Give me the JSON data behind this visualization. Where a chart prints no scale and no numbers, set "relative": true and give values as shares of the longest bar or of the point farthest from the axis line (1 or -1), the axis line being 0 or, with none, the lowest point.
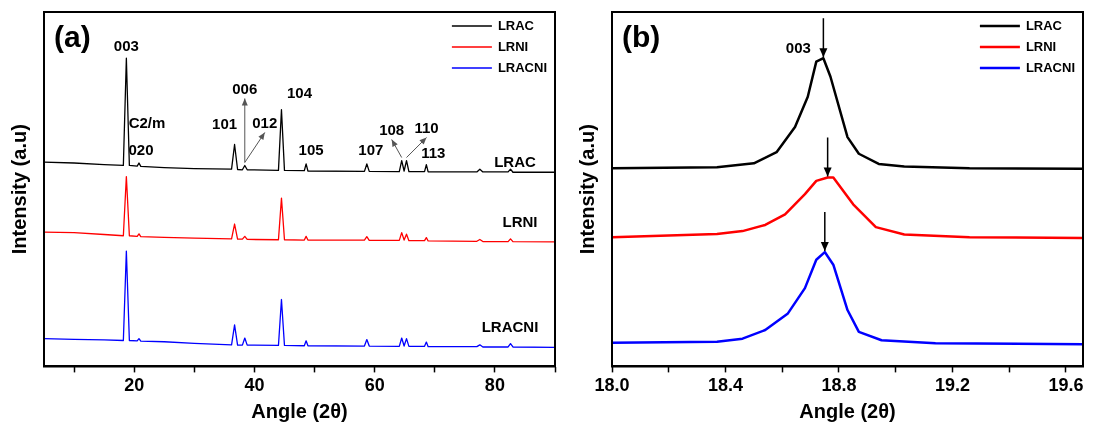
{
  "chart_data": [
    {
      "type": "line",
      "xlabel": "Angle (2θ)",
      "ylabel": "Intensity (a.u)",
      "relative": true,
      "marker": "none",
      "legend": "top right",
      "xlim": [
        5,
        90
      ],
      "xticks": [
        {
          "value": 10,
          "label": null
        },
        20,
        {
          "value": 30,
          "label": null
        },
        40,
        {
          "value": 50,
          "label": null
        },
        60,
        {
          "value": 70,
          "label": null
        },
        80,
        {
          "value": 90,
          "label": null
        }
      ],
      "annotations": [
        "(a)",
        {
          "text": "003",
          "x": 18.7,
          "y": 1.0
        },
        {
          "text": "020",
          "x": 20.8,
          "y": 0.66
        },
        {
          "text": "C2/m",
          "x": 20.8,
          "y": 0.66
        },
        {
          "text": "101",
          "x": 36.7,
          "y": 0.72
        },
        {
          "text": "006",
          "x": 38.4,
          "y": 0.652
        },
        {
          "text": "012",
          "x": 38.4,
          "y": 0.652
        },
        {
          "text": "104",
          "x": 44.5,
          "y": 0.833
        },
        {
          "text": "105",
          "x": 48.6,
          "y": 0.657
        },
        {
          "text": "107",
          "x": 58.7,
          "y": 0.657
        },
        {
          "text": "108",
          "x": 64.5,
          "y": 0.668
        },
        {
          "text": "110",
          "x": 65.3,
          "y": 0.668
        },
        {
          "text": "113",
          "x": 68.6,
          "y": 0.655
        },
        {
          "text": "LRAC",
          "x": 90,
          "y": 0.63
        },
        {
          "text": "LRNI",
          "x": 90,
          "y": 0.404
        },
        {
          "text": "LRACNI",
          "x": 90,
          "y": 0.062
        }
      ],
      "series": [
        {
          "name": "LRAC",
          "color": "#000000",
          "x": [
            5,
            10,
            15,
            18.2,
            18.7,
            19.2,
            20.5,
            20.8,
            21.1,
            25,
            30,
            36.2,
            36.7,
            37.2,
            38.0,
            38.4,
            38.8,
            44.0,
            44.5,
            45.0,
            48.3,
            48.6,
            48.9,
            58.3,
            58.7,
            59.1,
            64.1,
            64.5,
            64.9,
            65.3,
            65.7,
            68.3,
            68.6,
            68.9,
            77.0,
            77.5,
            78.0,
            82.2,
            82.6,
            83.0,
            90
          ],
          "values": [
            0.663,
            0.66,
            0.655,
            0.652,
            1.0,
            0.652,
            0.65,
            0.66,
            0.649,
            0.645,
            0.642,
            0.64,
            0.72,
            0.639,
            0.638,
            0.652,
            0.638,
            0.636,
            0.833,
            0.636,
            0.635,
            0.657,
            0.634,
            0.633,
            0.657,
            0.633,
            0.632,
            0.668,
            0.634,
            0.668,
            0.632,
            0.632,
            0.655,
            0.631,
            0.631,
            0.64,
            0.631,
            0.631,
            0.64,
            0.63,
            0.63
          ]
        },
        {
          "name": "LRNI",
          "color": "#ff0000",
          "x": [
            5,
            10,
            15,
            18.2,
            18.7,
            19.2,
            20.5,
            20.8,
            21.1,
            25,
            30,
            36.2,
            36.7,
            37.2,
            38.0,
            38.4,
            38.8,
            44.0,
            44.5,
            45.0,
            48.3,
            48.6,
            48.9,
            58.3,
            58.7,
            59.1,
            64.1,
            64.5,
            64.9,
            65.3,
            65.7,
            68.3,
            68.6,
            68.9,
            77.0,
            77.5,
            78.0,
            82.2,
            82.6,
            83.0,
            90
          ],
          "values": [
            0.436,
            0.434,
            0.428,
            0.424,
            0.616,
            0.424,
            0.422,
            0.43,
            0.421,
            0.419,
            0.416,
            0.414,
            0.462,
            0.413,
            0.413,
            0.422,
            0.412,
            0.411,
            0.546,
            0.411,
            0.41,
            0.422,
            0.41,
            0.41,
            0.421,
            0.409,
            0.409,
            0.434,
            0.41,
            0.429,
            0.408,
            0.408,
            0.418,
            0.407,
            0.406,
            0.412,
            0.405,
            0.405,
            0.414,
            0.405,
            0.404
          ]
        },
        {
          "name": "LRACNI",
          "color": "#0000ff",
          "x": [
            5,
            10,
            15,
            18.2,
            18.7,
            19.2,
            20.5,
            20.8,
            21.1,
            25,
            30,
            36.2,
            36.7,
            37.2,
            38.0,
            38.4,
            38.8,
            44.0,
            44.5,
            45.0,
            48.3,
            48.6,
            48.9,
            58.3,
            58.7,
            59.1,
            64.1,
            64.5,
            64.9,
            65.3,
            65.7,
            68.3,
            68.6,
            68.9,
            77.0,
            77.5,
            78.0,
            82.2,
            82.6,
            83.0,
            90
          ],
          "values": [
            0.09,
            0.088,
            0.086,
            0.084,
            0.374,
            0.084,
            0.083,
            0.09,
            0.082,
            0.08,
            0.075,
            0.07,
            0.135,
            0.069,
            0.069,
            0.092,
            0.069,
            0.068,
            0.217,
            0.068,
            0.067,
            0.083,
            0.067,
            0.066,
            0.087,
            0.066,
            0.065,
            0.092,
            0.066,
            0.09,
            0.065,
            0.065,
            0.079,
            0.064,
            0.064,
            0.07,
            0.063,
            0.063,
            0.074,
            0.063,
            0.062
          ]
        }
      ]
    },
    {
      "type": "line",
      "xlabel": "Angle (2θ)",
      "ylabel": "Intensity (a.u)",
      "relative": true,
      "marker": "none",
      "legend": "top right",
      "xlim": [
        18,
        19.66
      ],
      "xticks": [
        {
          "value": 18,
          "label": "18.0"
        },
        {
          "value": 18.2,
          "label": null
        },
        18.4,
        {
          "value": 18.6,
          "label": null
        },
        18.8,
        {
          "value": 19,
          "label": null
        },
        19.2,
        {
          "value": 19.4,
          "label": null
        },
        19.6
      ],
      "annotations": [
        "(b)",
        {
          "text": "003",
          "x": 18.745,
          "y": 1.0
        }
      ],
      "series": [
        {
          "name": "LRAC",
          "color": "#000000",
          "x": [
            18.0,
            18.37,
            18.5,
            18.58,
            18.645,
            18.69,
            18.72,
            18.745,
            18.77,
            18.83,
            18.87,
            18.94,
            19.03,
            19.26,
            19.66
          ],
          "values": [
            0.643,
            0.646,
            0.659,
            0.695,
            0.777,
            0.875,
            0.989,
            1.0,
            0.94,
            0.744,
            0.69,
            0.657,
            0.649,
            0.643,
            0.641
          ]
        },
        {
          "name": "LRNI",
          "color": "#ff0000",
          "x": [
            18.0,
            18.37,
            18.46,
            18.54,
            18.61,
            18.68,
            18.72,
            18.76,
            18.78,
            18.85,
            18.93,
            19.03,
            19.26,
            19.66
          ],
          "values": [
            0.419,
            0.43,
            0.439,
            0.459,
            0.493,
            0.559,
            0.602,
            0.613,
            0.613,
            0.526,
            0.452,
            0.428,
            0.419,
            0.417
          ]
        },
        {
          "name": "LRACNI",
          "color": "#0000ff",
          "x": [
            18.0,
            18.37,
            18.46,
            18.54,
            18.62,
            18.68,
            18.72,
            18.75,
            18.78,
            18.83,
            18.87,
            18.95,
            19.14,
            19.66
          ],
          "values": [
            0.077,
            0.08,
            0.09,
            0.118,
            0.172,
            0.254,
            0.346,
            0.371,
            0.33,
            0.183,
            0.112,
            0.085,
            0.075,
            0.072
          ]
        }
      ]
    }
  ]
}
